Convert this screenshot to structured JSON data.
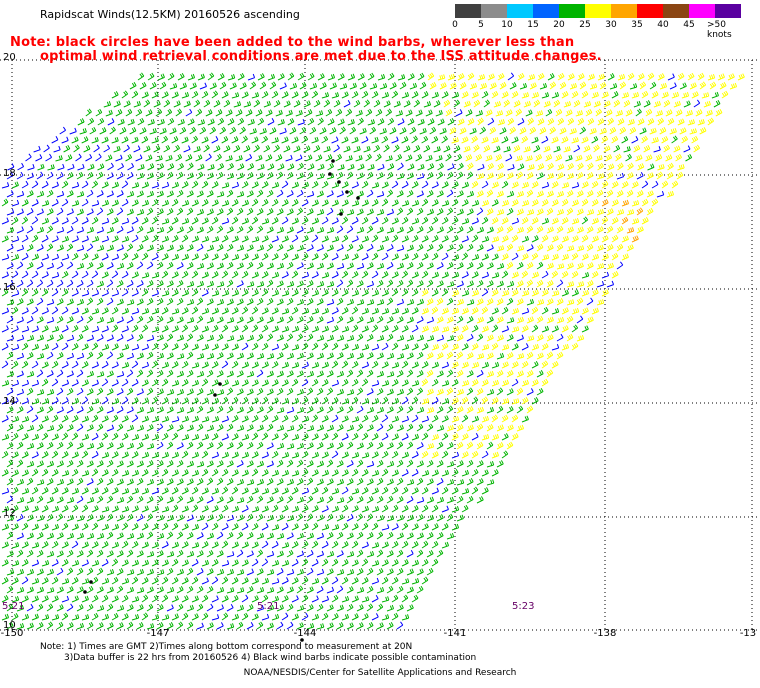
{
  "title": "Rapidscat Winds(12.5KM) 20160526 ascending",
  "note": {
    "line1": "Note: black circles have been added to the wind barbs, wherever less than",
    "line2": "optimal wind retrieval conditions are met due to the ISS attitude changes."
  },
  "legend": {
    "labels": [
      "0",
      "5",
      "10",
      "15",
      "20",
      "25",
      "30",
      "35",
      "40",
      "45",
      ">50 knots"
    ],
    "colors": [
      "#404040",
      "#8c8c8c",
      "#00c8ff",
      "#0064ff",
      "#00b400",
      "#ffff00",
      "#ffa500",
      "#ff0000",
      "#8b4513",
      "#ff00ff",
      "#5a00a0"
    ]
  },
  "chart_data": {
    "type": "wind-barb-map",
    "latitude_labels": [
      "20",
      "18",
      "16",
      "14",
      "12",
      "10"
    ],
    "longitude_labels": [
      "-150",
      "-147",
      "-144",
      "-141",
      "-138",
      "-13"
    ],
    "time_labels": [
      "5:21",
      "5:21",
      "5:23"
    ],
    "colors": {
      "slow": "#0000ff",
      "medium": "#00b400",
      "fast": "#ffff00",
      "very_fast": "#ffa500",
      "flagged": "#000000"
    }
  },
  "footer": {
    "line1": "Note: 1) Times are GMT 2)Times along bottom correspond to measurement at 20N",
    "line2": "3)Data buffer is 22 hrs from 20160526 4) Black wind barbs indicate possible contamination",
    "credit": "NOAA/NESDIS/Center for Satellite Applications and Research"
  }
}
